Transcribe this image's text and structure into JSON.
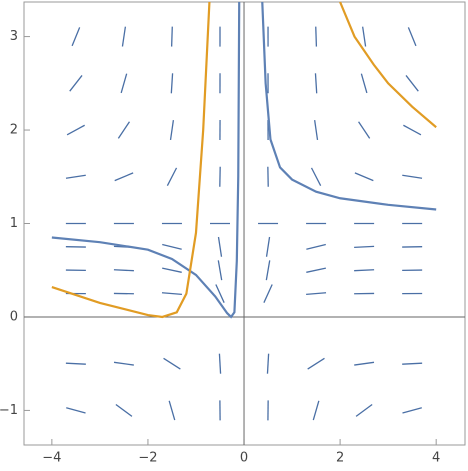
{
  "chart_data": {
    "type": "slope-field",
    "xlim": [
      -4.58,
      4.6
    ],
    "ylim": [
      -1.37,
      3.37
    ],
    "xticks": [
      {
        "value": -4,
        "label": "−4"
      },
      {
        "value": -2,
        "label": "−2"
      },
      0,
      2,
      4
    ],
    "yticks": [
      {
        "value": -1,
        "label": "−1"
      },
      0,
      1,
      2,
      3
    ],
    "field_color": "#4a6fa5",
    "field_x": [
      -3.5,
      -2.5,
      -1.5,
      -0.5,
      0.5,
      1.5,
      2.5,
      3.5
    ],
    "field_y": [
      -1,
      -0.5,
      0.25,
      0.5,
      0.75,
      1,
      1.5,
      2,
      2.5,
      3
    ],
    "slopes": [
      [
        -0.14,
        -0.38,
        -1.78,
        -48,
        48,
        1.78,
        0.38,
        0.14
      ],
      [
        -0.026,
        -0.072,
        -0.33,
        -9,
        9,
        0.33,
        0.072,
        0.026
      ],
      [
        -0.0033,
        -0.009,
        -0.042,
        -1.13,
        1.13,
        0.042,
        0.009,
        0.0033
      ],
      [
        -0.009,
        -0.024,
        -0.11,
        -3,
        3,
        0.11,
        0.024,
        0.009
      ],
      [
        -0.01,
        -0.027,
        -0.125,
        -3.38,
        3.38,
        0.125,
        0.027,
        0.01
      ],
      [
        0,
        0,
        0,
        0,
        0,
        0,
        0,
        0
      ],
      [
        0.079,
        0.216,
        1,
        27,
        -27,
        -1,
        -0.216,
        -0.079
      ],
      [
        0.28,
        0.77,
        3.56,
        96,
        -96,
        -3.56,
        -0.77,
        -0.28
      ],
      [
        0.66,
        1.8,
        8.3,
        225,
        -225,
        -8.3,
        -1.8,
        -0.66
      ],
      [
        1.26,
        3.46,
        16,
        432,
        -432,
        -16,
        -3.46,
        -1.26
      ]
    ],
    "series": [
      {
        "color": "#5e81b5",
        "x": [
          0.38,
          0.45,
          0.55,
          0.75,
          1,
          1.5,
          2,
          3,
          4
        ],
        "values": [
          3.37,
          2.5,
          1.9,
          1.6,
          1.47,
          1.34,
          1.27,
          1.2,
          1.15
        ]
      },
      {
        "color": "#5e81b5",
        "x": [
          -4,
          -3,
          -2,
          -1.5,
          -1,
          -0.6,
          -0.35,
          -0.27,
          -0.2,
          -0.15,
          -0.12,
          -0.1
        ],
        "values": [
          0.85,
          0.8,
          0.72,
          0.62,
          0.45,
          0.22,
          0.04,
          0,
          0.05,
          0.6,
          1.5,
          3.37
        ]
      },
      {
        "color": "#e19c24",
        "x": [
          -4,
          -3,
          -2,
          -1.7,
          -1.4,
          -1.2,
          -1,
          -0.85,
          -0.72
        ],
        "values": [
          0.32,
          0.15,
          0.02,
          0,
          0.05,
          0.25,
          0.9,
          2,
          3.37
        ]
      },
      {
        "color": "#e19c24",
        "x": [
          2,
          2.3,
          2.7,
          3,
          3.5,
          4
        ],
        "values": [
          3.37,
          3,
          2.7,
          2.5,
          2.25,
          2.03
        ]
      }
    ]
  }
}
